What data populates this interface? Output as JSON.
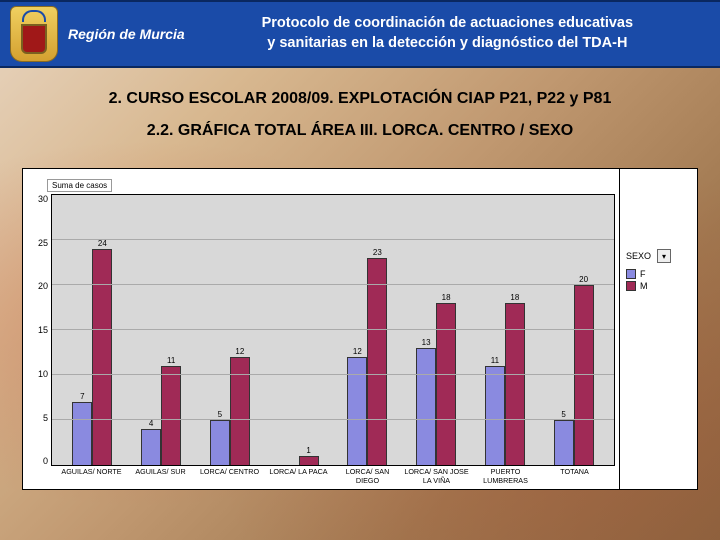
{
  "header": {
    "region": "Región de Murcia",
    "title_l1": "Protocolo de coordinación de actuaciones educativas",
    "title_l2": "y sanitarias en la detección y diagnóstico del TDA-H"
  },
  "titles": {
    "t1": "2. CURSO ESCOLAR 2008/09. EXPLOTACIÓN CIAP P21, P22 y P81",
    "t2": "2.2. GRÁFICA TOTAL ÁREA III. LORCA. CENTRO / SEXO"
  },
  "chart": {
    "type": "bar-grouped",
    "ylabel": "Suma de casos",
    "ymax": 30,
    "ytick_step": 5,
    "yticks": [
      "30",
      "25",
      "20",
      "15",
      "10",
      "5",
      "0"
    ],
    "background_color": "#d8d8d8",
    "grid_color": "#aaaaaa",
    "bar_border": "#333333",
    "series": [
      {
        "key": "F",
        "label": "F",
        "color": "#8a8ae0"
      },
      {
        "key": "M",
        "label": "M",
        "color": "#a02a56"
      }
    ],
    "categories": [
      {
        "label": "AGUILAS/ NORTE",
        "F": 7,
        "M": 24
      },
      {
        "label": "AGUILAS/ SUR",
        "F": 4,
        "M": 11
      },
      {
        "label": "LORCA/ CENTRO",
        "F": 5,
        "M": 12
      },
      {
        "label": "LORCA/ LA PACA",
        "F": 0,
        "M": 1
      },
      {
        "label": "LORCA/ SAN DIEGO",
        "F": 12,
        "M": 23
      },
      {
        "label": "LORCA/ SAN JOSE LA VIÑA",
        "F": 13,
        "M": 18
      },
      {
        "label": "PUERTO LUMBRERAS",
        "F": 11,
        "M": 18
      },
      {
        "label": "TOTANA",
        "F": 5,
        "M": 20
      }
    ],
    "legend": {
      "title": "SEXO"
    }
  }
}
